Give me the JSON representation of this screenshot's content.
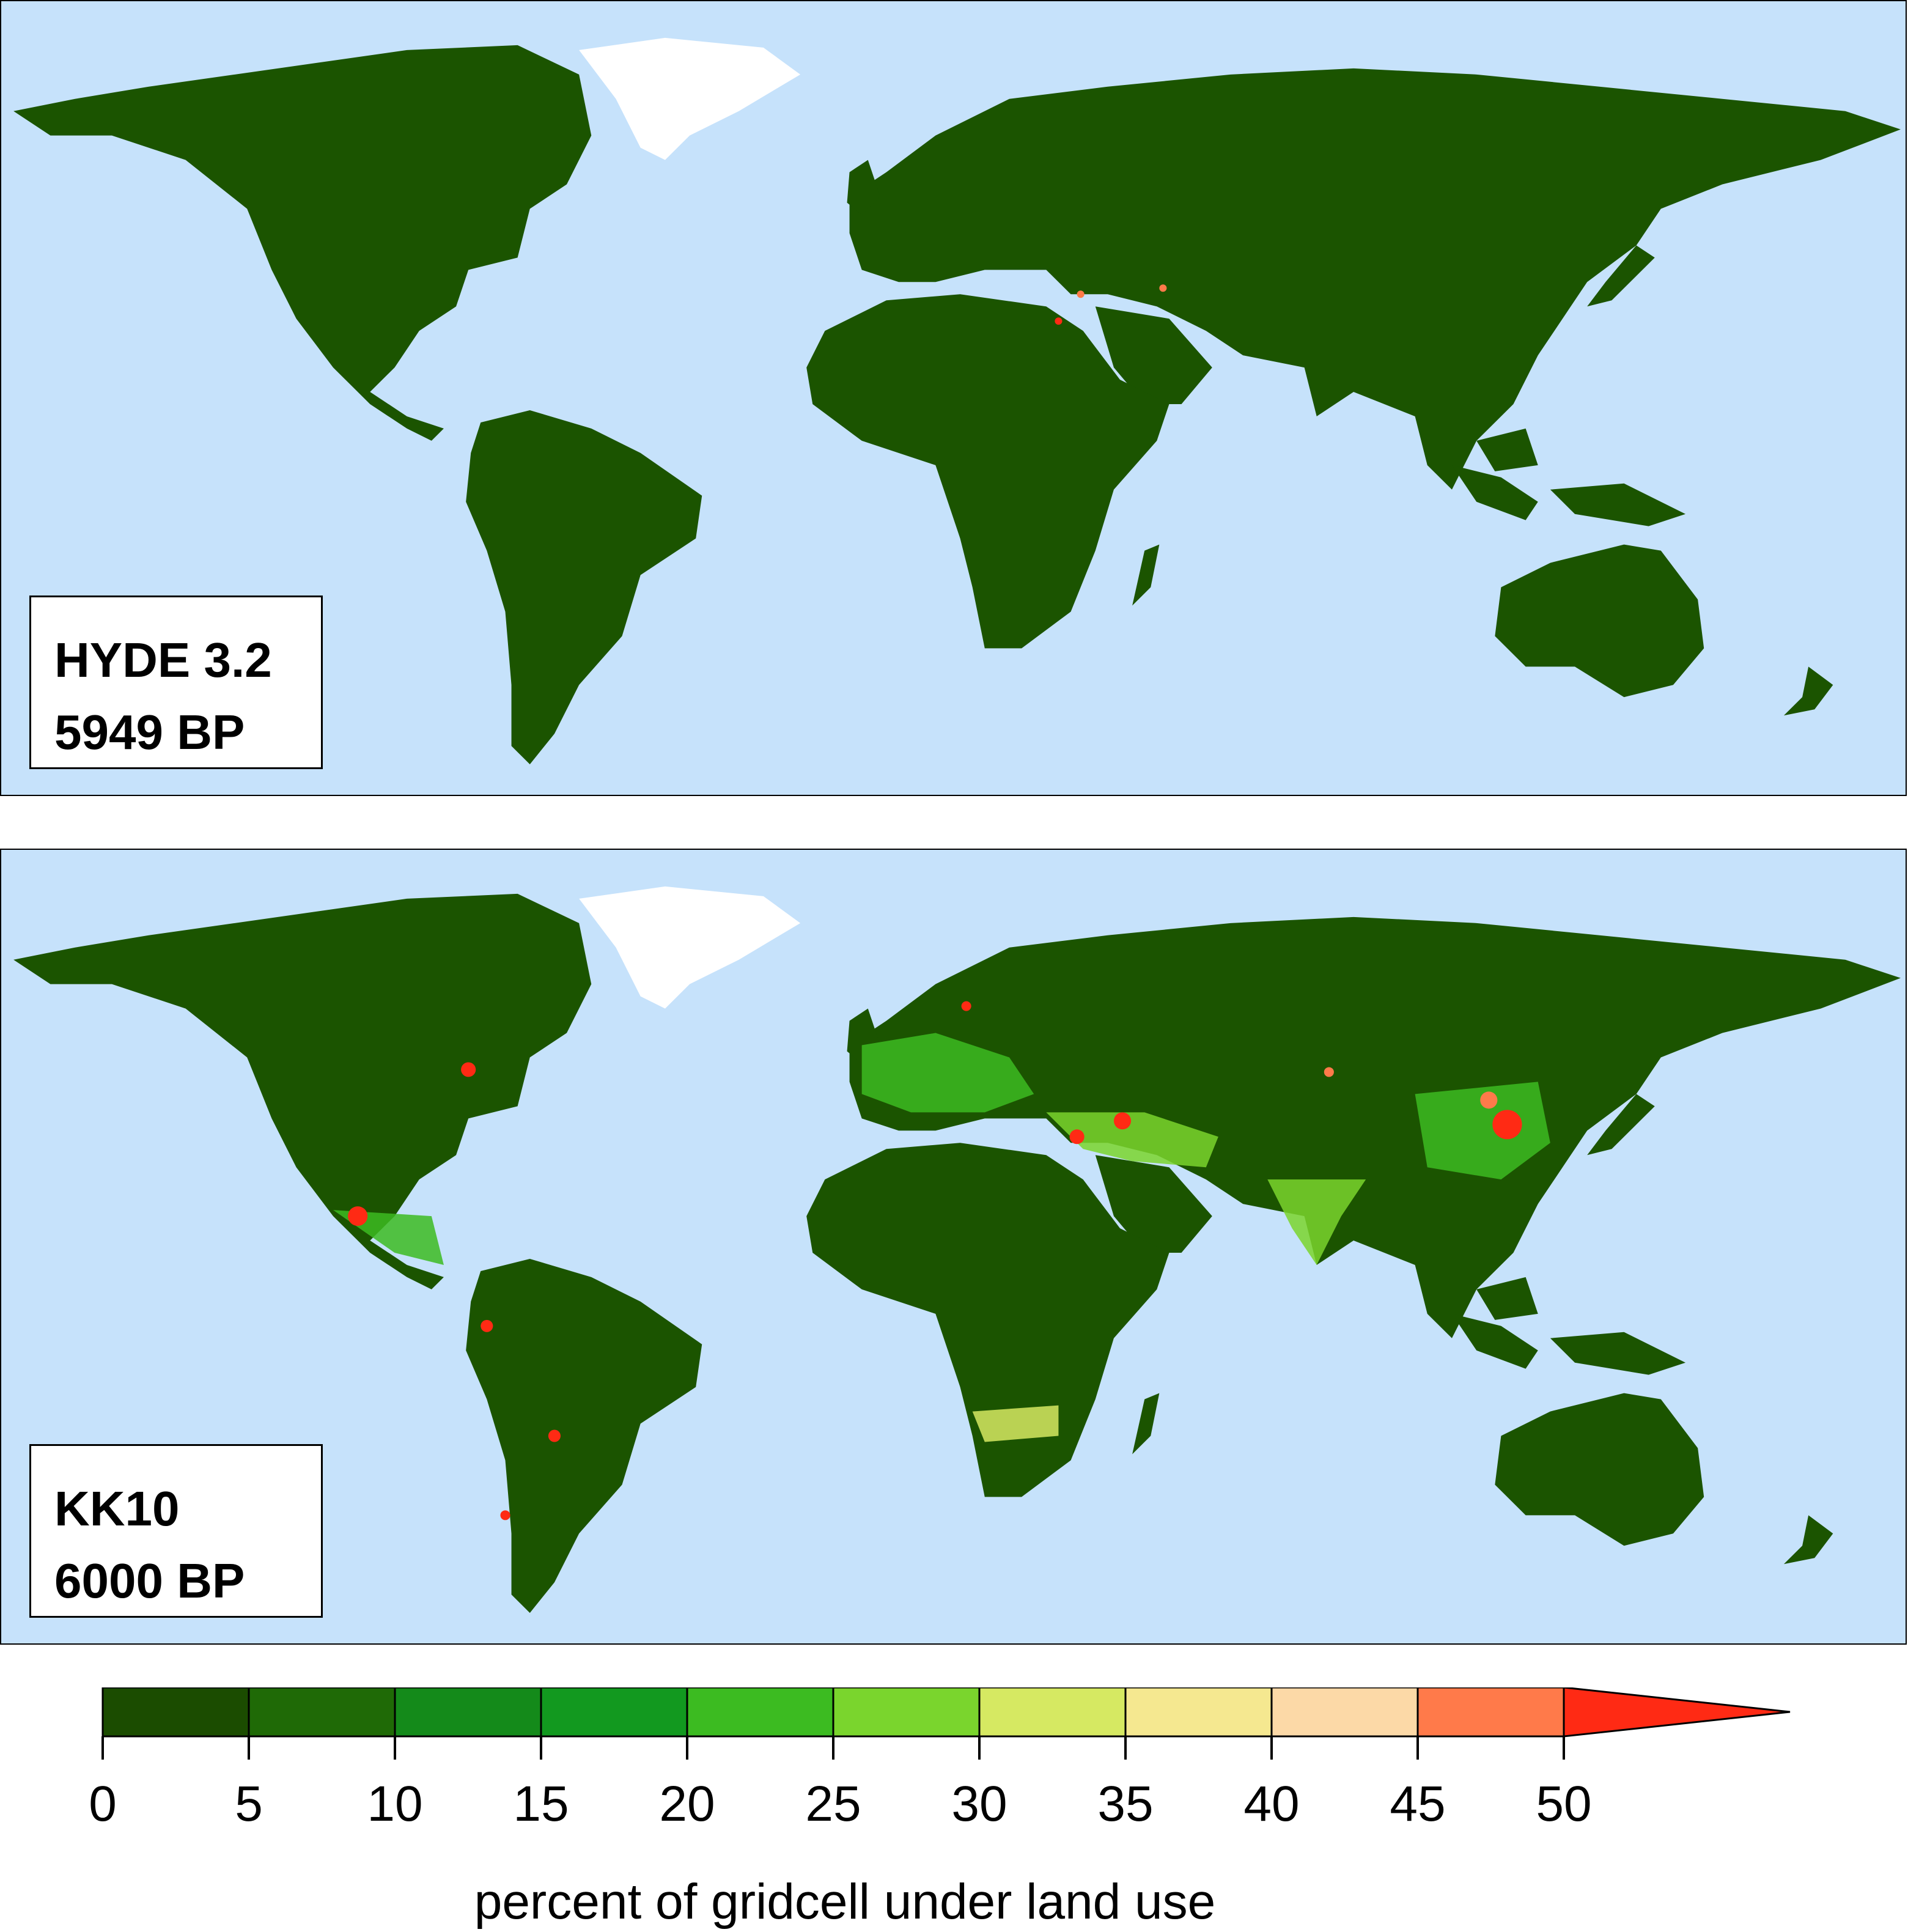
{
  "colors": {
    "ocean": "#c6e2fb",
    "ice": "#ffffff",
    "land_base": "#1b5400"
  },
  "panels": [
    {
      "title": "HYDE 3.2",
      "subtitle": "5949 BP"
    },
    {
      "title": "KK10",
      "subtitle": "6000 BP"
    }
  ],
  "legend": {
    "title": "percent of gridcell under land use",
    "ticks": [
      "0",
      "5",
      "10",
      "15",
      "20",
      "25",
      "30",
      "35",
      "40",
      "45",
      "50"
    ],
    "bins": [
      {
        "from": 0,
        "to": 5,
        "color": "#1b4c00"
      },
      {
        "from": 5,
        "to": 10,
        "color": "#1f6a06"
      },
      {
        "from": 10,
        "to": 15,
        "color": "#148a1a"
      },
      {
        "from": 15,
        "to": 20,
        "color": "#12991f"
      },
      {
        "from": 20,
        "to": 25,
        "color": "#3cbb21"
      },
      {
        "from": 25,
        "to": 30,
        "color": "#7ad52d"
      },
      {
        "from": 30,
        "to": 35,
        "color": "#d6e962"
      },
      {
        "from": 35,
        "to": 40,
        "color": "#f5e890"
      },
      {
        "from": 40,
        "to": 45,
        "color": "#fcd9a7"
      },
      {
        "from": 45,
        "to": 50,
        "color": "#ff7a4a"
      },
      {
        "from": 50,
        "to": null,
        "color": "#ff2a14"
      }
    ],
    "overflow_color": "#ff2a14"
  }
}
